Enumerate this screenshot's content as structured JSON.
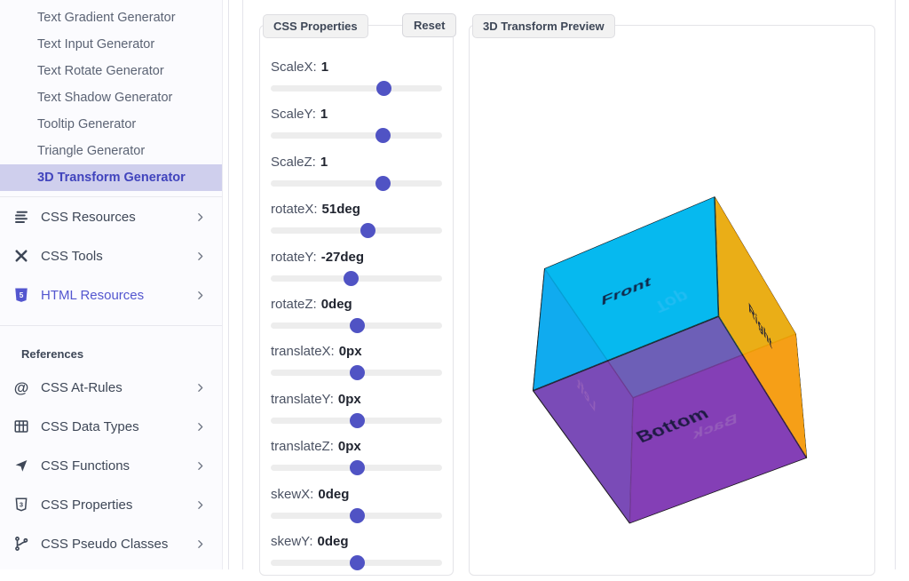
{
  "sidebar": {
    "generator_items": [
      {
        "label": "Text Gradient Generator",
        "active": false
      },
      {
        "label": "Text Input Generator",
        "active": false
      },
      {
        "label": "Text Rotate Generator",
        "active": false
      },
      {
        "label": "Text Shadow Generator",
        "active": false
      },
      {
        "label": "Tooltip Generator",
        "active": false
      },
      {
        "label": "Triangle Generator",
        "active": false
      },
      {
        "label": "3D Transform Generator",
        "active": true
      }
    ],
    "groups": [
      {
        "label": "CSS Resources",
        "icon": "list-lines-icon",
        "accent": false
      },
      {
        "label": "CSS Tools",
        "icon": "tools-icon",
        "accent": false
      },
      {
        "label": "HTML Resources",
        "icon": "html5-icon",
        "accent": true
      }
    ],
    "references": {
      "heading": "References",
      "items": [
        {
          "label": "CSS At-Rules",
          "icon": "at-icon"
        },
        {
          "label": "CSS Data Types",
          "icon": "table-icon"
        },
        {
          "label": "CSS Functions",
          "icon": "send-icon"
        },
        {
          "label": "CSS Properties",
          "icon": "css3-icon"
        },
        {
          "label": "CSS Pseudo Classes",
          "icon": "branch-icon"
        }
      ]
    }
  },
  "panels": {
    "properties": {
      "title": "CSS Properties",
      "reset_label": "Reset"
    },
    "preview": {
      "title": "3D Transform Preview"
    }
  },
  "sliders": [
    {
      "label": "ScaleX:",
      "value": "1",
      "fraction": 0.66
    },
    {
      "label": "ScaleY:",
      "value": "1",
      "fraction": 0.655
    },
    {
      "label": "ScaleZ:",
      "value": "1",
      "fraction": 0.655
    },
    {
      "label": "rotateX:",
      "value": "51deg",
      "fraction": 0.565
    },
    {
      "label": "rotateY:",
      "value": "-27deg",
      "fraction": 0.467
    },
    {
      "label": "rotateZ:",
      "value": "0deg",
      "fraction": 0.503
    },
    {
      "label": "translateX:",
      "value": "0px",
      "fraction": 0.503
    },
    {
      "label": "translateY:",
      "value": "0px",
      "fraction": 0.503
    },
    {
      "label": "translateZ:",
      "value": "0px",
      "fraction": 0.503
    },
    {
      "label": "skewX:",
      "value": "0deg",
      "fraction": 0.503
    },
    {
      "label": "skewY:",
      "value": "0deg",
      "fraction": 0.503
    }
  ],
  "cube": {
    "transform": "rotateX(51deg) rotateY(-27deg)",
    "faces": [
      {
        "name": "front",
        "label": "Front",
        "color": "rgba(0,176,240,0.85)",
        "text_color": "rgba(18,22,54,0.9)"
      },
      {
        "name": "back",
        "label": "Back",
        "color": "rgba(138,43,226,0.85)",
        "text_color": "rgba(255,255,255,0.8)"
      },
      {
        "name": "right",
        "label": "Right",
        "color": "rgba(255,167,0,0.9)",
        "text_color": "rgba(18,22,54,0.9)"
      },
      {
        "name": "left",
        "label": "Left",
        "color": "rgba(65,105,225,0.8)",
        "text_color": "rgba(255,255,255,0.8)"
      },
      {
        "name": "top",
        "label": "Top",
        "color": "rgba(0,229,229,0.85)",
        "text_color": "rgba(255,255,255,0.8)"
      },
      {
        "name": "bottom",
        "label": "Bottom",
        "color": "rgba(126,60,170,0.8)",
        "text_color": "rgba(18,22,54,0.9)"
      }
    ]
  },
  "colors": {
    "accent": "#4144bd",
    "active_item_bg": "#cfcfed",
    "slider_thumb": "#5053c4",
    "panel_tab_bg": "#f2f2f2",
    "sidebar_bg": "#fbfbfe"
  }
}
